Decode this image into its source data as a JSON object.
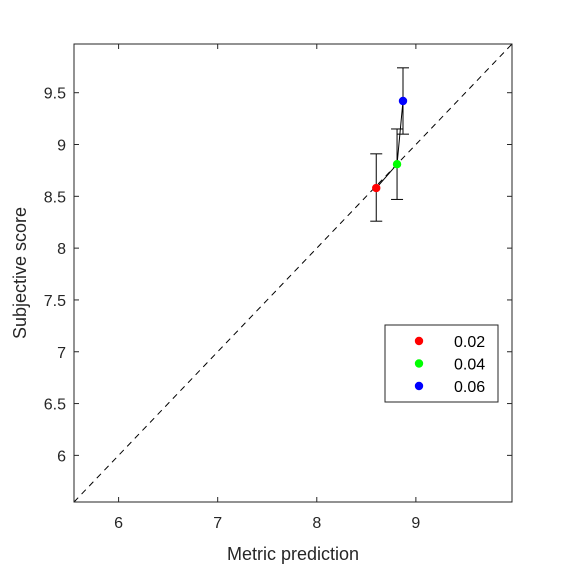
{
  "chart_data": {
    "type": "scatter",
    "xlabel": "Metric prediction",
    "ylabel": "Subjective score",
    "xlim": [
      5.55,
      9.97
    ],
    "ylim": [
      5.55,
      9.97
    ],
    "xticks": [
      6,
      7,
      8,
      9
    ],
    "yticks": [
      6,
      6.5,
      7,
      7.5,
      8,
      8.5,
      9,
      9.5
    ],
    "xtick_labels": [
      "6",
      "7",
      "8",
      "9"
    ],
    "ytick_labels": [
      "6",
      "6.5",
      "7",
      "7.5",
      "8",
      "8.5",
      "9",
      "9.5"
    ],
    "grid": false,
    "reference_line": "identity",
    "legend_placement": "right",
    "series": [
      {
        "name": "0.02",
        "color": "#ff0000",
        "x": 8.6,
        "y": 8.58,
        "err_low": 8.26,
        "err_high": 8.91
      },
      {
        "name": "0.04",
        "color": "#00ff00",
        "x": 8.81,
        "y": 8.81,
        "err_low": 8.47,
        "err_high": 9.15
      },
      {
        "name": "0.06",
        "color": "#0000ff",
        "x": 8.87,
        "y": 9.42,
        "err_low": 9.1,
        "err_high": 9.74
      }
    ]
  }
}
